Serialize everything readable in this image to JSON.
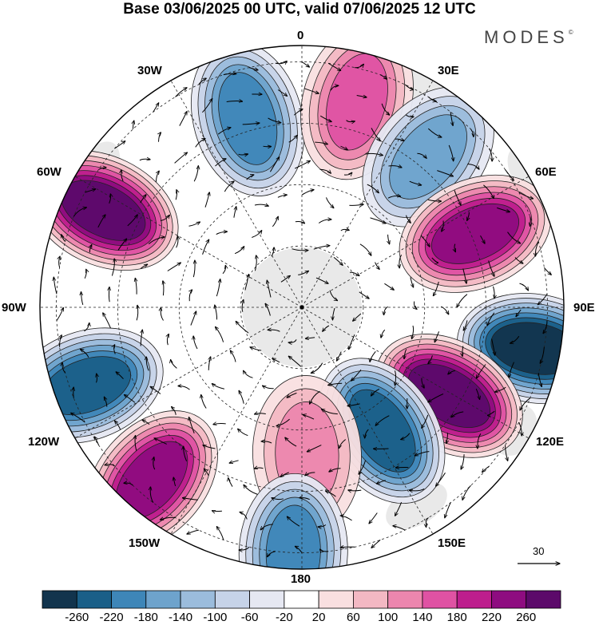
{
  "title": "Base 03/06/2025 00 UTC, valid 07/06/2025 12 UTC",
  "brand": "MODES",
  "brand_mark": "©",
  "longitude_labels": {
    "lon_0": "0",
    "lon_30e": "30E",
    "lon_60e": "60E",
    "lon_90e": "90E",
    "lon_120e": "120E",
    "lon_150e": "150E",
    "lon_180": "180",
    "lon_150w": "150W",
    "lon_120w": "120W",
    "lon_90w": "90W",
    "lon_60w": "60W",
    "lon_30w": "30W"
  },
  "reference_vector": "30",
  "colorbar": {
    "colors": [
      "#12344d",
      "#1a5f88",
      "#3e86b8",
      "#6ea3cc",
      "#9bbcdc",
      "#c6d3e8",
      "#e6e8f2",
      "#ffffff",
      "#f9dfe0",
      "#f3b8c3",
      "#ec86ae",
      "#df52a3",
      "#bd1e8d",
      "#8e0c80",
      "#5c0a6a"
    ],
    "ticks": [
      "-260",
      "-220",
      "-180",
      "-140",
      "-100",
      "-60",
      "-20",
      "20",
      "60",
      "100",
      "140",
      "180",
      "220",
      "260"
    ]
  },
  "anomaly_centers": [
    {
      "lon": 344,
      "lat_from_pole": 48,
      "value": -180
    },
    {
      "lon": 15,
      "lat_from_pole": 52,
      "value": 140
    },
    {
      "lon": 40,
      "lat_from_pole": 48,
      "value": -140
    },
    {
      "lon": 67,
      "lat_from_pole": 46,
      "value": 200
    },
    {
      "lon": 100,
      "lat_from_pole": 58,
      "value": -240
    },
    {
      "lon": 121,
      "lat_from_pole": 42,
      "value": 260
    },
    {
      "lon": 147,
      "lat_from_pole": 36,
      "value": -200
    },
    {
      "lon": 178,
      "lat_from_pole": 36,
      "value": 100
    },
    {
      "lon": 182,
      "lat_from_pole": 60,
      "value": -160
    },
    {
      "lon": 221,
      "lat_from_pole": 56,
      "value": 220
    },
    {
      "lon": 250,
      "lat_from_pole": 56,
      "value": -220
    },
    {
      "lon": 296,
      "lat_from_pole": 54,
      "value": 260
    }
  ]
}
